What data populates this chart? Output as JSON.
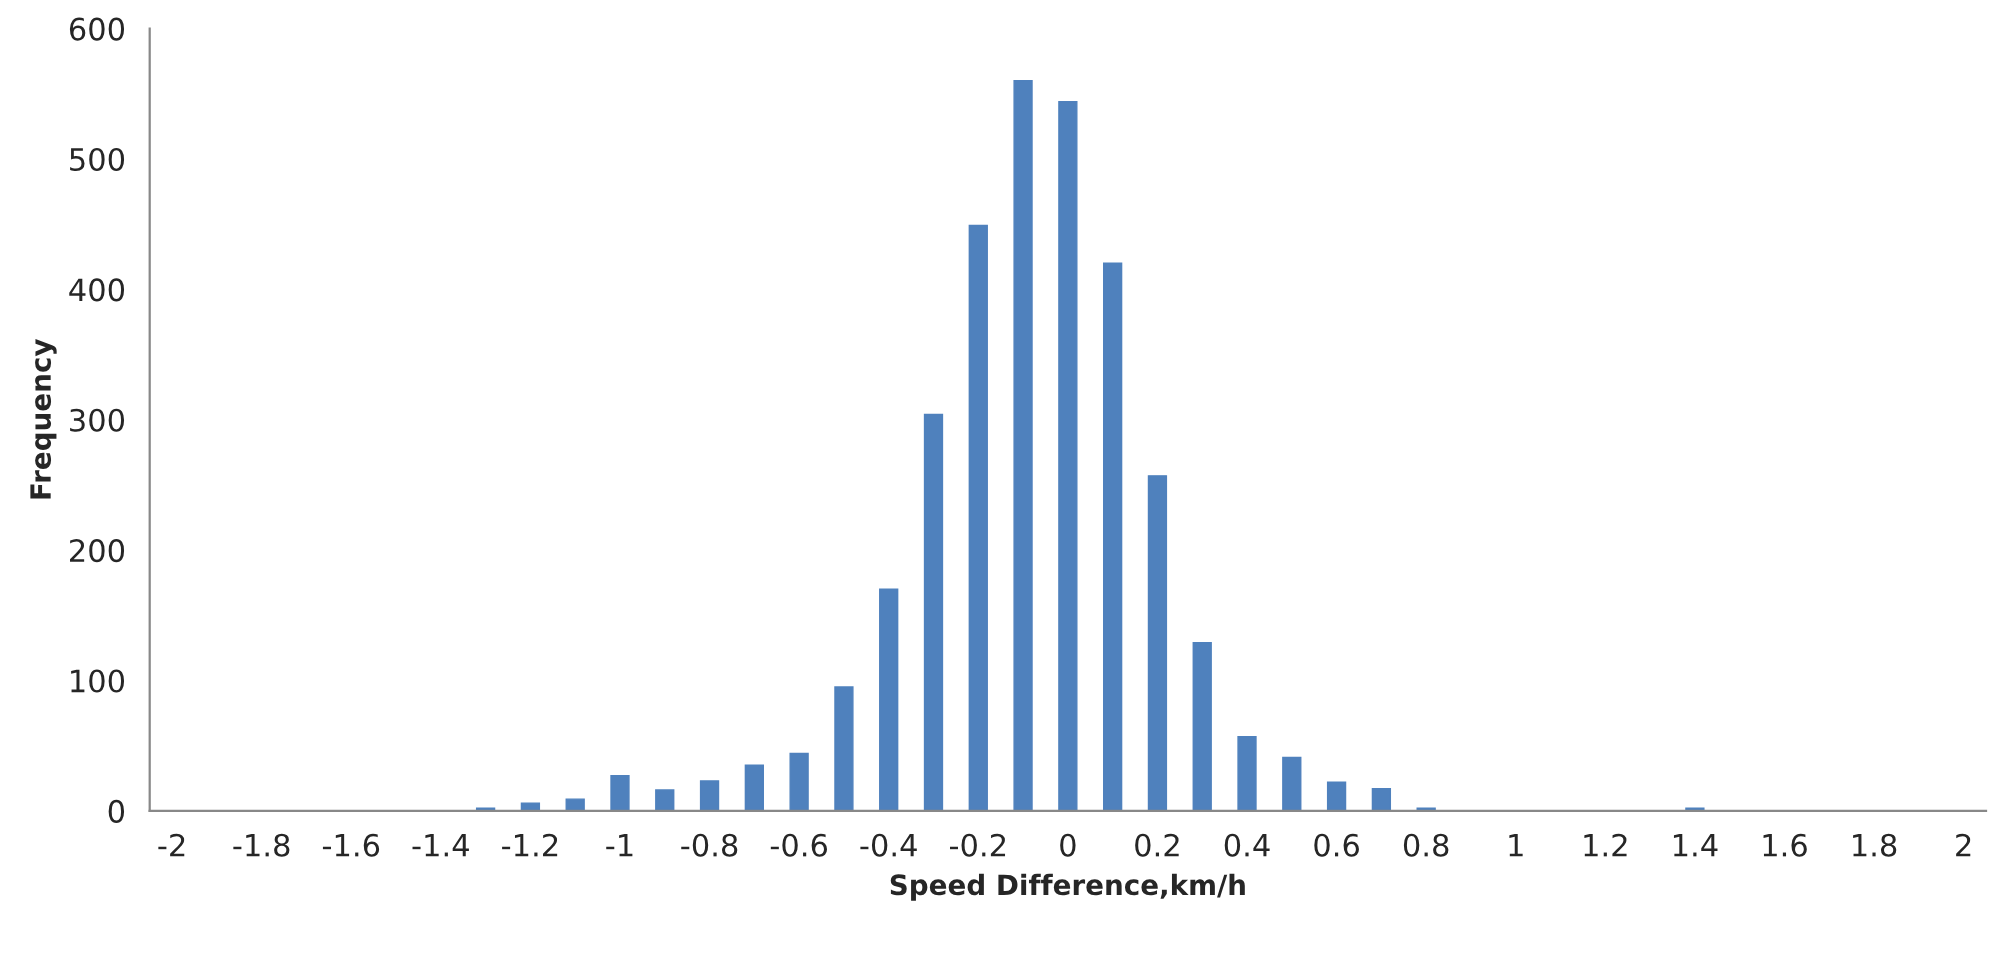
{
  "chart_data": {
    "type": "bar",
    "xlabel": "Speed Difference,km/h",
    "ylabel": "Frequency",
    "categories": [
      "-2",
      null,
      "-1.8",
      null,
      "-1.6",
      null,
      "-1.4",
      null,
      "-1.2",
      null,
      "-1",
      null,
      "-0.8",
      null,
      "-0.6",
      null,
      "-0.4",
      null,
      "-0.2",
      null,
      "0",
      null,
      "0.2",
      null,
      "0.4",
      null,
      "0.6",
      null,
      "0.8",
      null,
      "1",
      null,
      "1.2",
      null,
      "1.4",
      null,
      "1.6",
      null,
      "1.8",
      null,
      "2"
    ],
    "values": [
      0,
      0,
      0,
      0,
      0,
      0,
      0,
      2,
      6,
      9,
      27,
      16,
      23,
      35,
      44,
      95,
      170,
      304,
      449,
      560,
      544,
      420,
      257,
      129,
      57,
      41,
      22,
      17,
      2,
      0,
      0,
      0,
      0,
      0,
      2,
      0,
      0,
      0,
      0,
      0,
      0
    ],
    "color": "#4f81bd",
    "ylim": [
      0,
      600
    ],
    "yticks": [
      0,
      100,
      200,
      300,
      400,
      500,
      600
    ],
    "grid": false,
    "legend": false
  }
}
